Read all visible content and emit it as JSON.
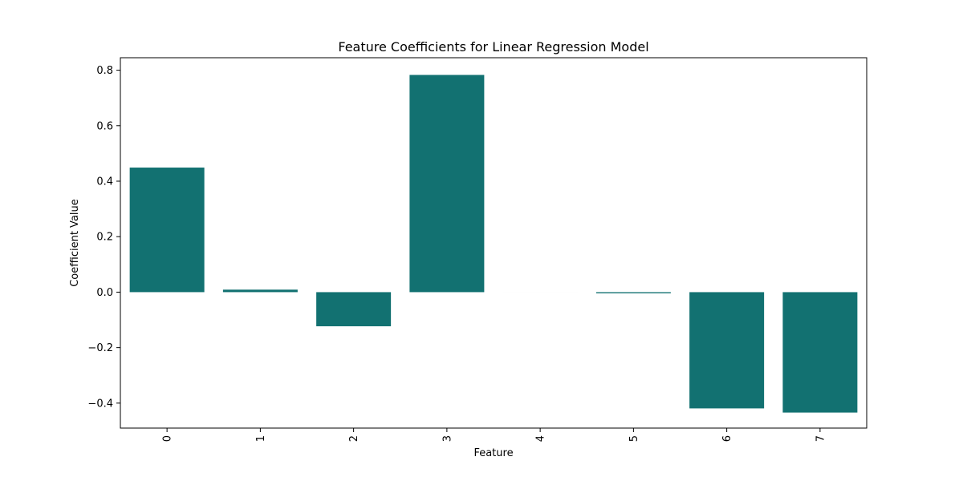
{
  "chart_data": {
    "type": "bar",
    "title": "Feature Coefficients for Linear Regression Model",
    "xlabel": "Feature",
    "ylabel": "Coefficient Value",
    "categories": [
      "0",
      "1",
      "2",
      "3",
      "4",
      "5",
      "6",
      "7"
    ],
    "values": [
      0.449,
      0.009,
      -0.123,
      0.783,
      0.0,
      -0.004,
      -0.419,
      -0.434
    ],
    "ylim": [
      -0.49,
      0.845
    ],
    "yticks": [
      -0.4,
      -0.2,
      0.0,
      0.2,
      0.4,
      0.6,
      0.8
    ],
    "ytick_labels": [
      "−0.4",
      "−0.2",
      "0.0",
      "0.2",
      "0.4",
      "0.6",
      "0.8"
    ],
    "bar_color": "#127171",
    "grid": false,
    "x_tick_rotation": "vertical"
  }
}
